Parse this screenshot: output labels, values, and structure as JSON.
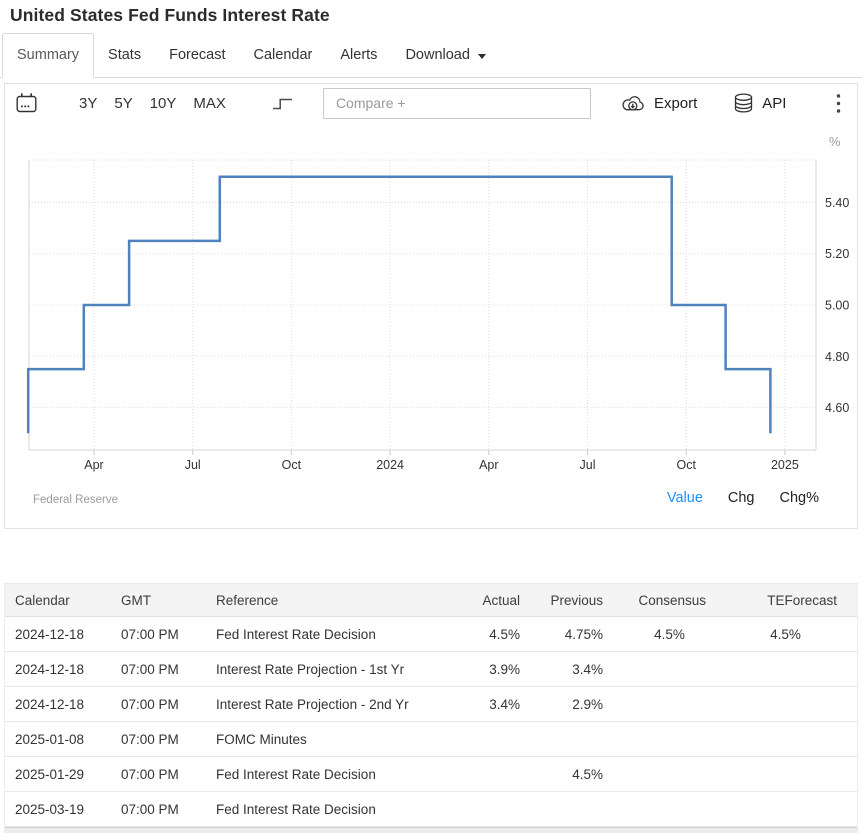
{
  "page": {
    "title": "United States Fed Funds Interest Rate"
  },
  "colors": {
    "accent_blue": "#1e90ff",
    "chart_line": "#4f81bd"
  },
  "tabs": {
    "items": [
      {
        "label": "Summary",
        "active": true
      },
      {
        "label": "Stats",
        "active": false
      },
      {
        "label": "Forecast",
        "active": false
      },
      {
        "label": "Calendar",
        "active": false
      },
      {
        "label": "Alerts",
        "active": false
      },
      {
        "label": "Download",
        "active": false,
        "has_caret": true
      }
    ]
  },
  "toolbar": {
    "ranges": [
      "3Y",
      "5Y",
      "10Y",
      "MAX"
    ],
    "compare_placeholder": "Compare +",
    "export_label": "Export",
    "api_label": "API",
    "icons": [
      "calendar-icon",
      "step-line-icon",
      "cloud-download-icon",
      "database-icon",
      "kebab-menu-icon"
    ]
  },
  "chart_data": {
    "type": "line",
    "subtype": "step",
    "title": "United States Fed Funds Interest Rate",
    "unit": "%",
    "ylabel": "%",
    "xlabel": "",
    "grid": "dotted",
    "legend": "none",
    "line_color": "#4f81bd",
    "ylim": [
      4.44,
      5.57
    ],
    "y_ticks": [
      5.4,
      5.2,
      5.0,
      4.8,
      4.6
    ],
    "x_ticks": [
      "Apr",
      "Jul",
      "Oct",
      "2024",
      "Apr",
      "Jul",
      "Oct",
      "2025"
    ],
    "x_tick_months": [
      3,
      6,
      9,
      12,
      15,
      18,
      21,
      24
    ],
    "series": [
      {
        "name": "Fed Funds Interest Rate",
        "points": [
          [
            "2023-02-01",
            4.5
          ],
          [
            "2023-02-01",
            4.75
          ],
          [
            "2023-03-22",
            5.0
          ],
          [
            "2023-05-03",
            5.25
          ],
          [
            "2023-07-26",
            5.5
          ],
          [
            "2024-09-18",
            5.0
          ],
          [
            "2024-11-07",
            4.75
          ],
          [
            "2024-12-18",
            4.5
          ]
        ]
      }
    ]
  },
  "chart_footer": {
    "source": "Federal Reserve",
    "links": [
      {
        "label": "Value",
        "active": true
      },
      {
        "label": "Chg",
        "active": false
      },
      {
        "label": "Chg%",
        "active": false
      }
    ]
  },
  "table": {
    "headers": [
      "Calendar",
      "GMT",
      "Reference",
      "Actual",
      "Previous",
      "Consensus",
      "TEForecast"
    ],
    "col_keys": [
      "calendar-date",
      "gmt-time",
      "reference",
      "actual",
      "previous",
      "consensus",
      "te-forecast"
    ],
    "rows": [
      [
        "2024-12-18",
        "07:00 PM",
        "Fed Interest Rate Decision",
        "4.5%",
        "4.75%",
        "4.5%",
        "4.5%"
      ],
      [
        "2024-12-18",
        "07:00 PM",
        "Interest Rate Projection - 1st Yr",
        "3.9%",
        "3.4%",
        "",
        ""
      ],
      [
        "2024-12-18",
        "07:00 PM",
        "Interest Rate Projection - 2nd Yr",
        "3.4%",
        "2.9%",
        "",
        ""
      ],
      [
        "2025-01-08",
        "07:00 PM",
        "FOMC Minutes",
        "",
        "",
        "",
        ""
      ],
      [
        "2025-01-29",
        "07:00 PM",
        "Fed Interest Rate Decision",
        "",
        "4.5%",
        "",
        ""
      ],
      [
        "2025-03-19",
        "07:00 PM",
        "Fed Interest Rate Decision",
        "",
        "",
        "",
        ""
      ]
    ]
  }
}
